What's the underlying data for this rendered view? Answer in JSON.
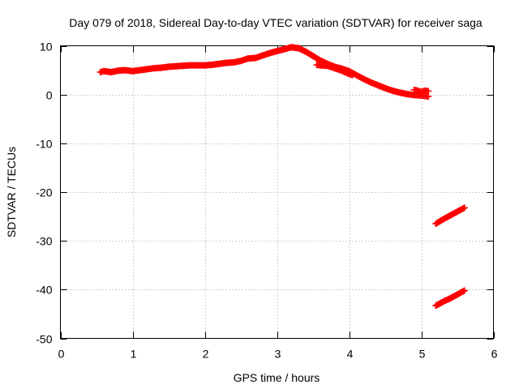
{
  "chart_data": {
    "type": "scatter",
    "title": "Day 079 of 2018, Sidereal Day-to-day VTEC variation (SDTVAR) for receiver saga",
    "xlabel": "GPS time / hours",
    "ylabel": "SDTVAR / TECUs",
    "xlim": [
      0,
      6
    ],
    "ylim": [
      -50,
      10
    ],
    "grid": true,
    "x_ticks": [
      0,
      1,
      2,
      3,
      4,
      5,
      6
    ],
    "y_ticks": [
      -50,
      -40,
      -30,
      -20,
      -10,
      0,
      10
    ],
    "x_tick_labels": [
      "0",
      "1",
      "2",
      "3",
      "4",
      "5",
      "6"
    ],
    "y_tick_labels": [
      "-50",
      "-40",
      "-30",
      "-20",
      "-10",
      "0",
      "10"
    ],
    "marker": "+",
    "color": "#ff0000",
    "series": [
      {
        "name": "main-trace",
        "x": [
          0.55,
          0.6,
          0.7,
          0.8,
          0.9,
          1.0,
          1.1,
          1.2,
          1.3,
          1.4,
          1.5,
          1.6,
          1.7,
          1.8,
          1.9,
          2.0,
          2.1,
          2.2,
          2.3,
          2.4,
          2.5,
          2.6,
          2.7,
          2.8,
          2.9,
          3.0,
          3.1,
          3.2,
          3.3,
          3.4,
          3.5,
          3.6,
          3.7,
          3.8,
          3.9,
          4.0,
          4.1,
          4.2,
          4.3,
          4.4,
          4.5,
          4.6,
          4.7,
          4.8,
          4.9,
          5.0,
          5.05,
          5.1
        ],
        "y": [
          4.6,
          4.8,
          4.6,
          4.9,
          5.0,
          4.8,
          5.0,
          5.2,
          5.4,
          5.5,
          5.7,
          5.8,
          5.9,
          6.0,
          6.0,
          6.0,
          6.1,
          6.3,
          6.5,
          6.6,
          6.9,
          7.4,
          7.5,
          8.0,
          8.5,
          8.9,
          9.3,
          9.7,
          9.5,
          8.8,
          7.9,
          7.0,
          6.3,
          5.7,
          5.3,
          4.8,
          4.0,
          3.2,
          2.5,
          1.9,
          1.3,
          0.8,
          0.4,
          0.1,
          -0.1,
          -0.2,
          -0.3,
          -0.4
        ]
      },
      {
        "name": "secondary-trace",
        "x": [
          3.55,
          3.6,
          3.7,
          3.8,
          3.9,
          4.0,
          4.05
        ],
        "y": [
          6.1,
          6.0,
          5.9,
          5.4,
          4.9,
          4.2,
          4.0
        ]
      },
      {
        "name": "end-cluster",
        "x": [
          4.9,
          4.95,
          5.0,
          5.05,
          5.1
        ],
        "y": [
          1.0,
          0.8,
          0.6,
          0.8,
          0.7
        ]
      },
      {
        "name": "offset-trace-upper",
        "x": [
          5.2,
          5.3,
          5.4,
          5.5,
          5.6
        ],
        "y": [
          -26.5,
          -25.6,
          -24.8,
          -24.0,
          -23.2
        ]
      },
      {
        "name": "offset-trace-lower",
        "x": [
          5.2,
          5.3,
          5.4,
          5.5,
          5.6
        ],
        "y": [
          -43.3,
          -42.5,
          -41.8,
          -41.0,
          -40.2
        ]
      }
    ]
  }
}
